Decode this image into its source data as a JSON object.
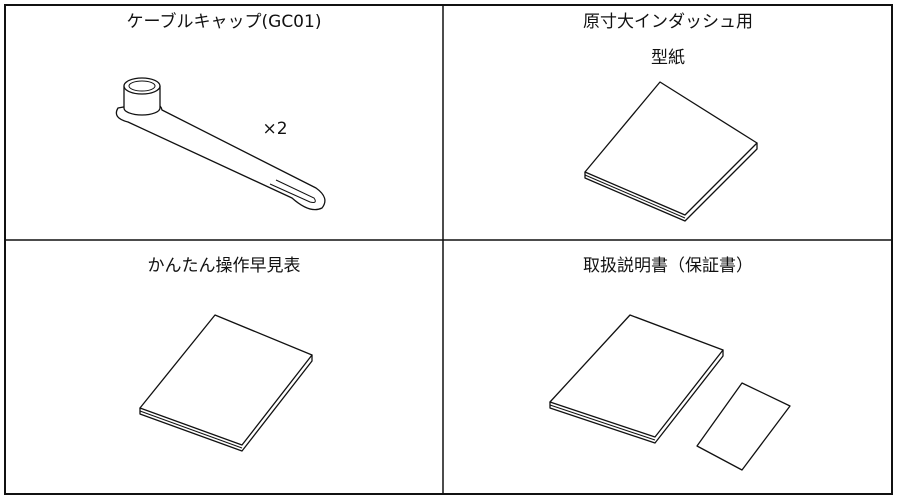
{
  "cells": [
    {
      "title": "ケーブルキャップ(GC01)",
      "quantity": "×2"
    },
    {
      "title": "原寸大インダッシュ用",
      "subtitle": "型紙"
    },
    {
      "title": "かんたん操作早見表"
    },
    {
      "title": "取扱説明書（保証書）"
    }
  ]
}
